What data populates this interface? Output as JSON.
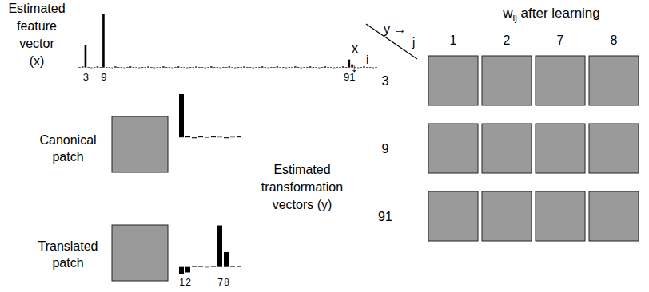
{
  "chart_data": [
    {
      "type": "bar",
      "title": "Estimated feature vector (x)",
      "categories": [
        null,
        null,
        "3",
        null,
        null,
        null,
        null,
        null,
        "9",
        null,
        null,
        null,
        null,
        null,
        null,
        null,
        null,
        null,
        null,
        null,
        null,
        null,
        null,
        null,
        null,
        null,
        null,
        null,
        null,
        null,
        null,
        null,
        null,
        null,
        null,
        null,
        null,
        null,
        null,
        null,
        null,
        null,
        null,
        null,
        null,
        null,
        null,
        null,
        null,
        null,
        null,
        null,
        null,
        null,
        null,
        null,
        null,
        null,
        null,
        null,
        null,
        null,
        null,
        null,
        null,
        null,
        null,
        null,
        null,
        null,
        null,
        null,
        null,
        null,
        null,
        null,
        null,
        null,
        null,
        null,
        null,
        null,
        null,
        null,
        null,
        null,
        null,
        null,
        null,
        null,
        "91",
        null,
        null,
        null,
        null,
        null,
        null,
        null,
        null,
        null
      ],
      "values": [
        0.01,
        0.02,
        0.42,
        0.01,
        -0.01,
        0.01,
        0.02,
        0.01,
        1.0,
        0.01,
        0.01,
        -0.01,
        0.02,
        0.01,
        0.01,
        -0.01,
        0.01,
        0.02,
        0.01,
        0.01,
        -0.01,
        0.01,
        0.01,
        0.02,
        0.01,
        -0.01,
        0.01,
        0.01,
        0.02,
        0.01,
        0.01,
        -0.01,
        0.01,
        0.02,
        0.01,
        0.01,
        -0.01,
        0.01,
        0.01,
        0.02,
        0.01,
        0.01,
        -0.01,
        0.01,
        0.02,
        0.01,
        0.01,
        -0.01,
        0.01,
        0.01,
        0.02,
        0.01,
        -0.01,
        0.01,
        0.01,
        0.02,
        0.01,
        0.01,
        -0.01,
        0.01,
        0.01,
        0.02,
        0.01,
        -0.01,
        0.01,
        0.01,
        0.02,
        0.01,
        0.01,
        -0.01,
        0.01,
        0.01,
        0.02,
        0.01,
        -0.01,
        0.01,
        0.01,
        0.02,
        0.01,
        0.01,
        -0.01,
        0.01,
        0.02,
        0.01,
        0.01,
        -0.01,
        0.01,
        0.01,
        0.02,
        0.01,
        0.15,
        0.06,
        0.01,
        -0.01,
        0.01,
        0.02,
        0.01,
        0.01,
        -0.01,
        0.01
      ],
      "color": "#000000",
      "ylim": [
        -0.05,
        1
      ],
      "tick_labels": "x"
    },
    {
      "type": "bar",
      "categories": [
        null,
        null,
        null,
        null,
        null,
        null,
        null,
        null,
        null,
        null
      ],
      "values": [
        1.0,
        0.04,
        -0.02,
        0.02,
        -0.01,
        0.02,
        0.01,
        -0.02,
        0.01,
        0.02
      ],
      "color": "#000000",
      "ylim": [
        -0.2,
        1
      ],
      "tick_labels": false
    },
    {
      "type": "bar",
      "categories": [
        "1",
        "2",
        null,
        null,
        null,
        null,
        "7",
        "8",
        null,
        null
      ],
      "values": [
        -0.15,
        -0.12,
        0.01,
        0.01,
        -0.01,
        0.01,
        0.92,
        0.33,
        0.01,
        0.01
      ],
      "color": "#000000",
      "ylim": [
        -0.2,
        1
      ],
      "tick_labels": "x"
    }
  ],
  "figure": {
    "canonical_patch": {
      "label": "Canonical patch"
    },
    "translated_patch": {
      "label": "Translated patch"
    },
    "transformation_label": "Estimated transformation vectors (y)",
    "weights": {
      "title": "w",
      "title_subscript": "ij",
      "title_rest": " after learning",
      "column_axis": "y",
      "column_arrow": "→",
      "column_index": "j",
      "row_axis": "x",
      "row_arrow": "↓",
      "row_index": "i",
      "columns": [
        "1",
        "2",
        "7",
        "8"
      ],
      "rows": [
        "3",
        "9",
        "91"
      ]
    }
  }
}
